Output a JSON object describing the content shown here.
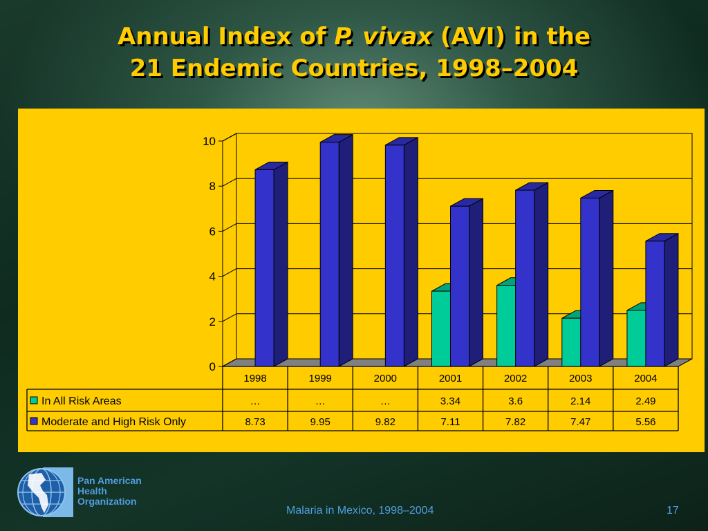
{
  "title": {
    "prefix": "Annual Index of ",
    "italic": "P. vivax",
    "suffix": " (AVI) in the",
    "line2": "21 Endemic Countries, 1998–2004"
  },
  "chart_data": {
    "type": "bar",
    "categories": [
      "1998",
      "1999",
      "2000",
      "2001",
      "2002",
      "2003",
      "2004"
    ],
    "series": [
      {
        "name": "In All Risk Areas",
        "values": [
          null,
          null,
          null,
          3.34,
          3.6,
          2.14,
          2.49
        ],
        "labels": [
          "…",
          "…",
          "…",
          "3.34",
          "3.6",
          "2.14",
          "2.49"
        ],
        "color": "#00cc99"
      },
      {
        "name": "Moderate and High Risk Only",
        "values": [
          8.73,
          9.95,
          9.82,
          7.11,
          7.82,
          7.47,
          5.56
        ],
        "labels": [
          "8.73",
          "9.95",
          "9.82",
          "7.11",
          "7.82",
          "7.47",
          "5.56"
        ],
        "color": "#3333cc"
      }
    ],
    "yticks": [
      "0",
      "2",
      "4",
      "6",
      "8",
      "10"
    ],
    "ylim": [
      0,
      10
    ],
    "grid": true,
    "data_table": true,
    "style": "3d-column"
  },
  "logo": {
    "line1": "Pan American",
    "line2": "Health",
    "line3": "Organization"
  },
  "footer": {
    "caption": "Malaria in Mexico, 1998–2004",
    "page_number": "17"
  },
  "colors": {
    "title": "#ffcc00",
    "panel": "#ffcc00",
    "footer_text": "#4f9ee0"
  }
}
